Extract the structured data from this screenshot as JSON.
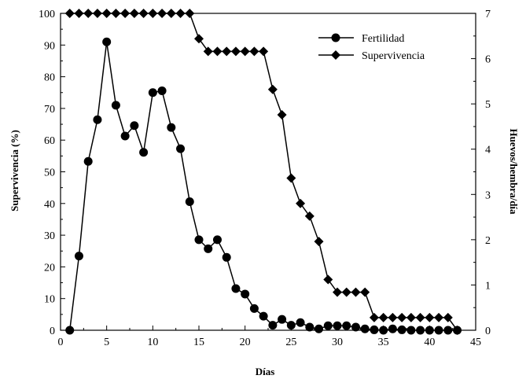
{
  "chart_data": {
    "type": "line",
    "xlabel": "Días",
    "ylabel_left": "Supervivencia (%)",
    "ylabel_right": "Huevos/hembra/día",
    "xlim": [
      0,
      45
    ],
    "ylim_left": [
      0,
      100
    ],
    "ylim_right": [
      0,
      7
    ],
    "x_ticks": [
      0,
      5,
      10,
      15,
      20,
      25,
      30,
      35,
      40,
      45
    ],
    "y_left_ticks": [
      0,
      10,
      20,
      30,
      40,
      50,
      60,
      70,
      80,
      90,
      100
    ],
    "y_right_ticks": [
      0,
      1,
      2,
      3,
      4,
      5,
      6,
      7
    ],
    "grid": false,
    "legend_position": "top-right",
    "series": [
      {
        "name": "Fertilidad",
        "axis": "right",
        "marker": "circle",
        "x": [
          1,
          2,
          3,
          4,
          5,
          6,
          7,
          8,
          9,
          10,
          11,
          12,
          13,
          14,
          15,
          16,
          17,
          18,
          19,
          20,
          21,
          22,
          23,
          24,
          25,
          26,
          27,
          28,
          29,
          30,
          31,
          32,
          33,
          34,
          35,
          36,
          37,
          38,
          39,
          40,
          41,
          42,
          43
        ],
        "y": [
          0.0,
          1.64,
          3.73,
          4.65,
          6.37,
          4.97,
          4.29,
          4.52,
          3.93,
          5.25,
          5.29,
          4.48,
          4.01,
          2.84,
          2.0,
          1.8,
          2.0,
          1.61,
          0.92,
          0.8,
          0.48,
          0.31,
          0.11,
          0.24,
          0.11,
          0.17,
          0.07,
          0.03,
          0.1,
          0.1,
          0.1,
          0.07,
          0.03,
          0.01,
          0.0,
          0.03,
          0.01,
          0.0,
          0.0,
          0.0,
          0.0,
          0.0,
          0.0
        ]
      },
      {
        "name": "Supervivencia",
        "axis": "left",
        "marker": "diamond",
        "x": [
          1,
          2,
          3,
          4,
          5,
          6,
          7,
          8,
          9,
          10,
          11,
          12,
          13,
          14,
          15,
          16,
          17,
          18,
          19,
          20,
          21,
          22,
          23,
          24,
          25,
          26,
          27,
          28,
          29,
          30,
          31,
          32,
          33,
          34,
          35,
          36,
          37,
          38,
          39,
          40,
          41,
          42,
          43
        ],
        "y": [
          100,
          100,
          100,
          100,
          100,
          100,
          100,
          100,
          100,
          100,
          100,
          100,
          100,
          100,
          92,
          88,
          88,
          88,
          88,
          88,
          88,
          88,
          76,
          68,
          48,
          40,
          36,
          28,
          16,
          12,
          12,
          12,
          12,
          4,
          4,
          4,
          4,
          4,
          4,
          4,
          4,
          4,
          0
        ]
      }
    ]
  }
}
